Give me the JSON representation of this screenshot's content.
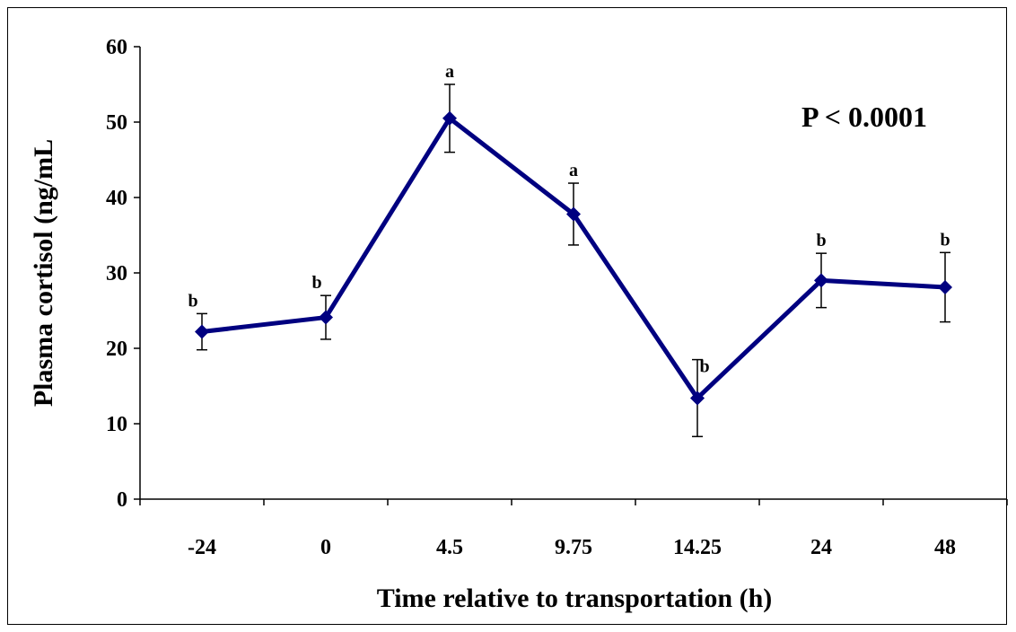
{
  "chart_data": {
    "type": "line",
    "title": "",
    "xlabel": "Time relative to transportation (h)",
    "ylabel": "Plasma cortisol (ng/mL",
    "ylim": [
      0,
      60
    ],
    "yticks": [
      "0",
      "10",
      "20",
      "30",
      "40",
      "50",
      "60"
    ],
    "categories": [
      "-24",
      "0",
      "4.5",
      "9.75",
      "14.25",
      "24",
      "48"
    ],
    "series": [
      {
        "values": [
          22.2,
          24.1,
          50.5,
          37.8,
          13.4,
          29.0,
          28.1
        ],
        "error": [
          2.4,
          2.9,
          4.5,
          4.1,
          5.1,
          3.6,
          4.6
        ],
        "letters": [
          "b",
          "b",
          "a",
          "a",
          "b",
          "b",
          "b"
        ],
        "color": "#000080",
        "marker": "diamond"
      }
    ],
    "annotation": "P < 0.0001",
    "grid": false,
    "legend": "none"
  }
}
